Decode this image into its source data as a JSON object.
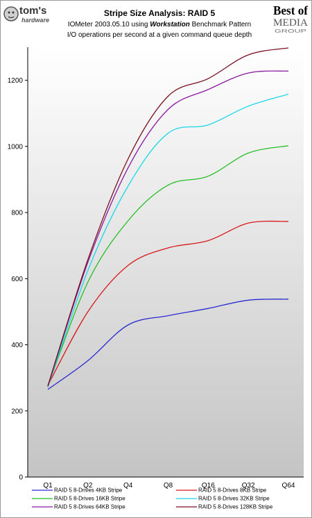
{
  "header": {
    "left_logo_text": "tom's",
    "left_logo_subtext": "hardware",
    "right_logo_text": "Best of",
    "right_logo_sub1": "MEDIA",
    "right_logo_sub2": "GROUP",
    "title": "Stripe Size Analysis: RAID 5",
    "subtitle_pre": "IOMeter 2003.05.10 using ",
    "subtitle_emph": "Workstation",
    "subtitle_post": " Benchmark Pattern",
    "subtitle2": "I/O operations per second at a given command queue depth"
  },
  "chart_data": {
    "type": "line",
    "title": "Stripe Size Analysis: RAID 5",
    "categories": [
      "Q1",
      "Q2",
      "Q4",
      "Q8",
      "Q16",
      "Q32",
      "Q64"
    ],
    "ylim": [
      0,
      1300
    ],
    "yticks": [
      0,
      200,
      400,
      600,
      800,
      1000,
      1200
    ],
    "grid": false,
    "legend_position": "bottom",
    "series": [
      {
        "name": "RAID 5 8-Drives 4KB Stripe",
        "color": "#2a2ad0",
        "values": [
          265,
          352,
          460,
          488,
          510,
          535,
          538
        ]
      },
      {
        "name": "RAID 5 8-Drives 8KB Stripe",
        "color": "#d81818",
        "values": [
          277,
          500,
          640,
          693,
          715,
          768,
          773
        ]
      },
      {
        "name": "RAID 5 8-Drives 16KB Stripe",
        "color": "#22c022",
        "values": [
          275,
          590,
          775,
          883,
          910,
          980,
          1002
        ]
      },
      {
        "name": "RAID 5 8-Drives 32KB Stripe",
        "color": "#18d8e8",
        "values": [
          272,
          625,
          880,
          1040,
          1065,
          1122,
          1158
        ]
      },
      {
        "name": "RAID 5 8-Drives 64KB Stripe",
        "color": "#8a1aa0",
        "values": [
          274,
          650,
          935,
          1112,
          1172,
          1222,
          1228
        ]
      },
      {
        "name": "RAID 5 8-Drives 128KB Stripe",
        "color": "#7a1020",
        "values": [
          276,
          658,
          962,
          1152,
          1205,
          1277,
          1298
        ]
      }
    ]
  }
}
